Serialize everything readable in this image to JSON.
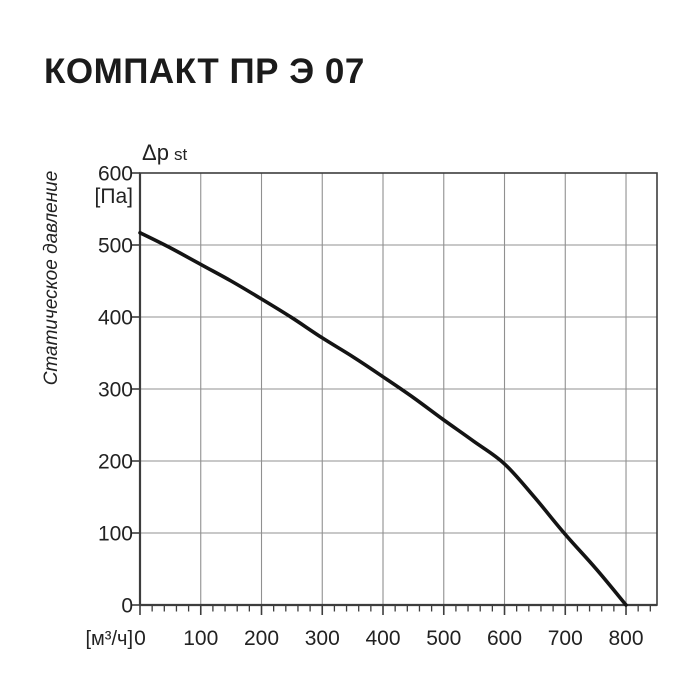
{
  "chart_data": {
    "type": "line",
    "title": "КОМПАКТ ПР Э 07",
    "x_axis": {
      "unit": "[м³/ч]",
      "ticks": [
        0,
        100,
        200,
        300,
        400,
        500,
        600,
        700,
        800
      ],
      "minor_step": 20,
      "minor_max": 840,
      "lim": [
        0,
        851
      ],
      "grid": true
    },
    "y_axis": {
      "symbol": "Δp",
      "symbol_sub": "st",
      "unit": "[Па]",
      "label": "Статическое давление",
      "ticks": [
        0,
        100,
        200,
        300,
        400,
        500,
        600
      ],
      "lim": [
        0,
        600
      ],
      "grid": true
    },
    "series": [
      {
        "name": "Δp st",
        "color": "#141414",
        "points": [
          [
            0,
            517
          ],
          [
            50,
            496
          ],
          [
            100,
            473
          ],
          [
            150,
            450
          ],
          [
            200,
            425
          ],
          [
            250,
            399
          ],
          [
            300,
            371
          ],
          [
            350,
            345
          ],
          [
            400,
            317
          ],
          [
            450,
            288
          ],
          [
            500,
            257
          ],
          [
            550,
            227
          ],
          [
            600,
            196
          ],
          [
            650,
            149
          ],
          [
            700,
            98
          ],
          [
            750,
            51
          ],
          [
            800,
            0
          ]
        ]
      }
    ],
    "colors": {
      "grid": "#909090",
      "border": "#3d3d3d",
      "tick": "#3d3d3d",
      "text": "#222222",
      "curve": "#141414"
    },
    "legend": "none"
  }
}
